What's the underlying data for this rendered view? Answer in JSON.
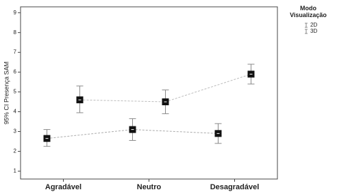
{
  "chart_data": {
    "type": "errorbar",
    "y_label": "95% CI Presença SAM",
    "legend_title": "Modo Visualização",
    "categories": [
      "Agradável",
      "Neutro",
      "Desagradável"
    ],
    "series": [
      {
        "name": "2D",
        "color": "#111111",
        "line_color": "#aaaaaa",
        "values": [
          2.65,
          3.1,
          2.9
        ],
        "lower": [
          2.25,
          2.55,
          2.4
        ],
        "upper": [
          3.1,
          3.65,
          3.4
        ]
      },
      {
        "name": "3D",
        "color": "#111111",
        "line_color": "#bbbbbb",
        "values": [
          4.6,
          4.5,
          5.9
        ],
        "lower": [
          3.95,
          3.9,
          5.4
        ],
        "upper": [
          5.3,
          5.1,
          6.4
        ]
      }
    ],
    "ylim": [
      0.6,
      9.3
    ],
    "yticks": [
      1,
      2,
      3,
      4,
      5,
      6,
      7,
      8,
      9
    ],
    "grid": false,
    "legend": "right"
  }
}
